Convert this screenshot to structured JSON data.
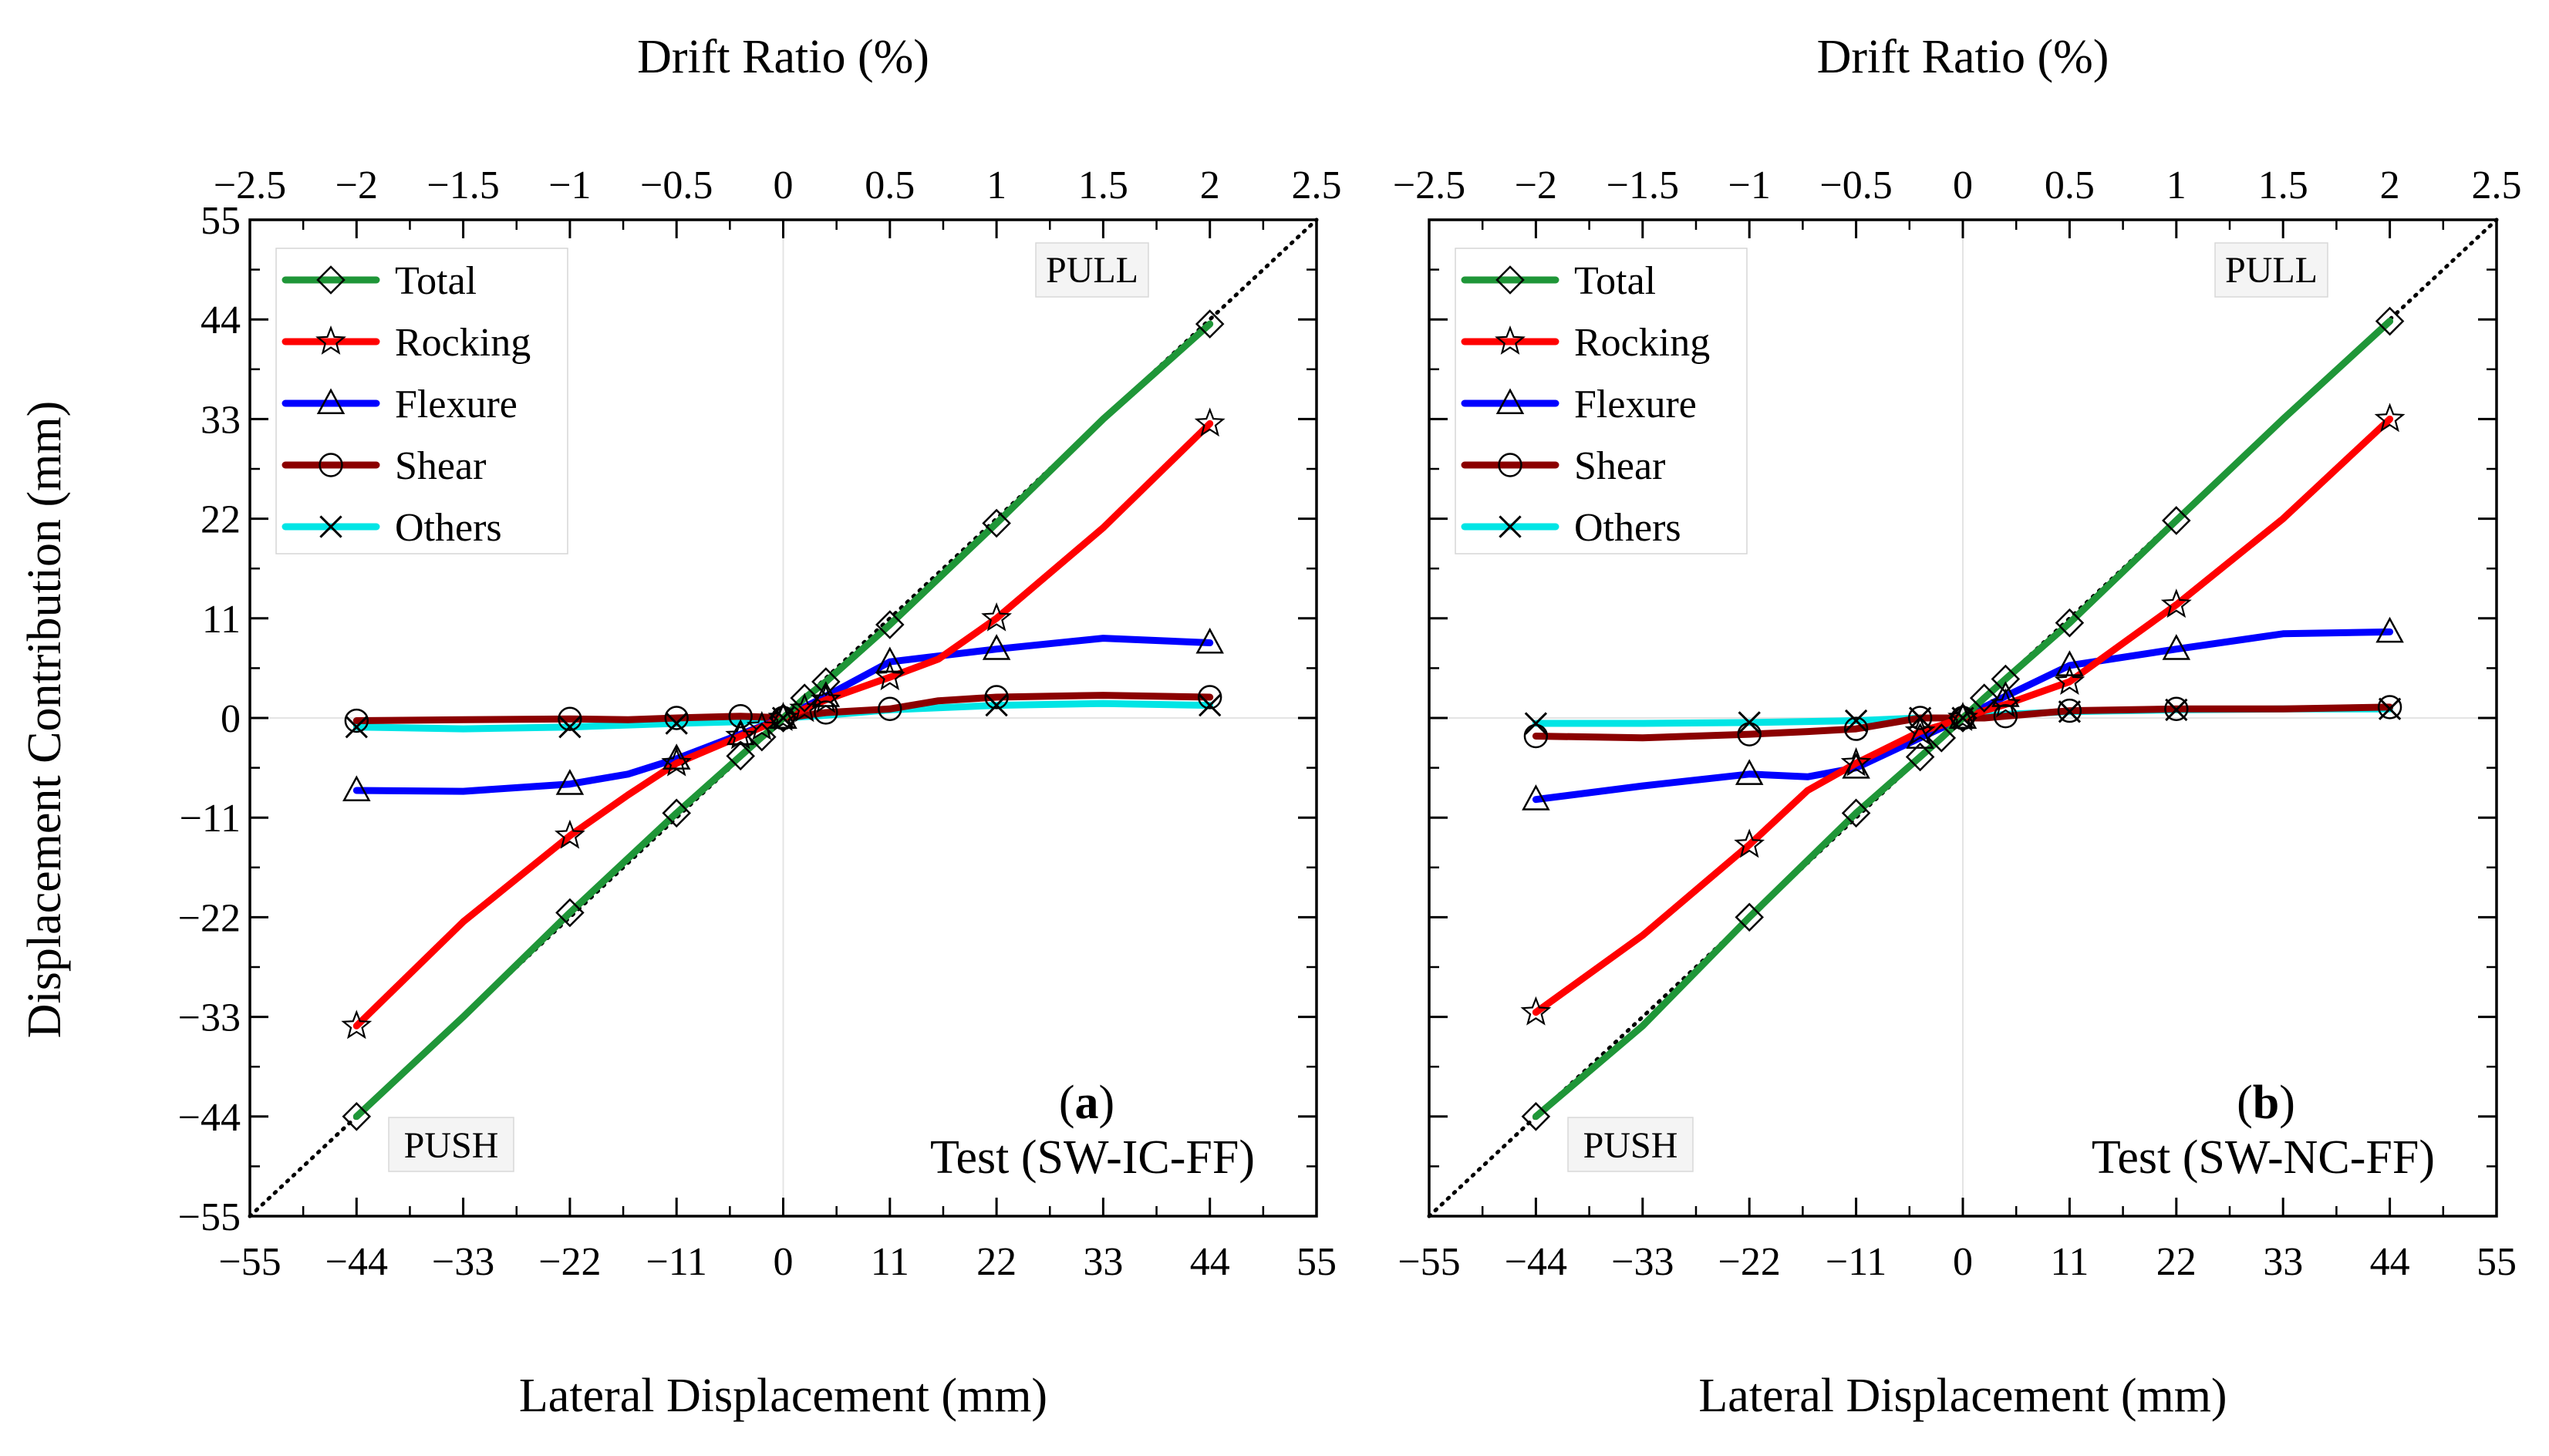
{
  "chart_data": [
    {
      "type": "line",
      "panel_label": "(a)",
      "panel_letter": "a",
      "test_name": "Test (SW-IC-FF)",
      "pull_label": "PULL",
      "push_label": "PUSH",
      "xlabel": "Lateral Displacement (mm)",
      "x2label": "Drift Ratio (%)",
      "ylabel": "Displacement Contribution (mm)",
      "xlim": [
        -55,
        55
      ],
      "ylim": [
        -55,
        55
      ],
      "x2lim": [
        -2.5,
        2.5
      ],
      "xticks": [
        -55,
        -44,
        -33,
        -22,
        -11,
        0,
        11,
        22,
        33,
        44,
        55
      ],
      "yticks": [
        -55,
        -44,
        -33,
        -22,
        -11,
        0,
        11,
        22,
        33,
        44,
        55
      ],
      "x2ticks": [
        -2.5,
        -2,
        -1.5,
        -1,
        -0.5,
        0,
        0.5,
        1,
        1.5,
        2,
        2.5
      ],
      "xtick_labels": [
        "−55",
        "−44",
        "−33",
        "−22",
        "−11",
        "0",
        "11",
        "22",
        "33",
        "44",
        "55"
      ],
      "ytick_labels": [
        "−55",
        "−44",
        "−33",
        "−22",
        "−11",
        "0",
        "11",
        "22",
        "33",
        "44",
        "55"
      ],
      "x2tick_labels": [
        "−2.5",
        "−2",
        "−1.5",
        "−1",
        "−0.5",
        "0",
        "0.5",
        "1",
        "1.5",
        "2",
        "2.5"
      ],
      "reference_line": "dotted 1:1 line",
      "series": [
        {
          "name": "Total",
          "color": "#1f9638",
          "marker": "diamond",
          "x": [
            -44,
            -33,
            -22,
            -11,
            -4.4,
            -2.2,
            -1.1,
            0,
            1.1,
            2.2,
            4.4,
            11,
            22,
            33,
            44
          ],
          "y": [
            -44,
            -33,
            -21.5,
            -10.5,
            -4.2,
            -2.1,
            -1.1,
            0,
            1.1,
            2.2,
            4.0,
            10.3,
            21.5,
            33,
            43.5
          ],
          "mx": [
            -44,
            -22,
            -11,
            -4.4,
            -2.2,
            0,
            2.2,
            4.4,
            11,
            22,
            44
          ]
        },
        {
          "name": "Rocking",
          "color": "#ff0000",
          "marker": "star",
          "x": [
            -44,
            -33,
            -22,
            -16,
            -11,
            -4.4,
            -2.2,
            0,
            2.2,
            4.4,
            11,
            16,
            22,
            33,
            44
          ],
          "y": [
            -34,
            -22.5,
            -13,
            -8.5,
            -5,
            -2,
            -1,
            0,
            1,
            2,
            4.5,
            6.5,
            11,
            21,
            32.5
          ],
          "mx": [
            -44,
            -22,
            -11,
            -4.4,
            -2.2,
            0,
            2.2,
            4.4,
            11,
            22,
            44
          ]
        },
        {
          "name": "Flexure",
          "color": "#0000ff",
          "marker": "triangle",
          "x": [
            -44,
            -33,
            -22,
            -16,
            -11,
            -4.4,
            -2.2,
            0,
            2.2,
            4.4,
            11,
            22,
            33,
            44
          ],
          "y": [
            -8,
            -8.1,
            -7.3,
            -6.2,
            -4.5,
            -1.8,
            -0.9,
            0,
            1.2,
            2.4,
            6.2,
            7.6,
            8.8,
            8.3
          ],
          "mx": [
            -44,
            -22,
            -11,
            -4.4,
            0,
            4.4,
            11,
            22,
            44
          ]
        },
        {
          "name": "Shear",
          "color": "#8b0000",
          "marker": "circle",
          "x": [
            -44,
            -33,
            -22,
            -16,
            -11,
            -4.4,
            -2.2,
            0,
            2.2,
            4.4,
            11,
            16,
            22,
            33,
            44
          ],
          "y": [
            -0.3,
            -0.2,
            -0.1,
            -0.2,
            0,
            0.2,
            0.1,
            0,
            0.3,
            0.6,
            1.0,
            1.9,
            2.3,
            2.5,
            2.3
          ],
          "mx": [
            -44,
            -22,
            -11,
            -4.4,
            0,
            4.4,
            11,
            22,
            44
          ]
        },
        {
          "name": "Others",
          "color": "#00e5e5",
          "marker": "x",
          "x": [
            -44,
            -33,
            -22,
            -11,
            -4.4,
            0,
            4.4,
            11,
            22,
            33,
            44
          ],
          "y": [
            -1.0,
            -1.2,
            -1.0,
            -0.6,
            -0.4,
            0,
            0.3,
            0.9,
            1.4,
            1.6,
            1.4
          ],
          "mx": [
            -44,
            -22,
            -11,
            0,
            22,
            44
          ]
        }
      ]
    },
    {
      "type": "line",
      "panel_label": "(b)",
      "panel_letter": "b",
      "test_name": "Test (SW-NC-FF)",
      "pull_label": "PULL",
      "push_label": "PUSH",
      "xlabel": "Lateral Displacement (mm)",
      "x2label": "Drift Ratio (%)",
      "ylabel": "",
      "xlim": [
        -55,
        55
      ],
      "ylim": [
        -55,
        55
      ],
      "x2lim": [
        -2.5,
        2.5
      ],
      "xticks": [
        -55,
        -44,
        -33,
        -22,
        -11,
        0,
        11,
        22,
        33,
        44,
        55
      ],
      "yticks": [
        -55,
        -44,
        -33,
        -22,
        -11,
        0,
        11,
        22,
        33,
        44,
        55
      ],
      "x2ticks": [
        -2.5,
        -2,
        -1.5,
        -1,
        -0.5,
        0,
        0.5,
        1,
        1.5,
        2,
        2.5
      ],
      "xtick_labels": [
        "−55",
        "−44",
        "−33",
        "−22",
        "−11",
        "0",
        "11",
        "22",
        "33",
        "44",
        "55"
      ],
      "ytick_labels": [],
      "x2tick_labels": [
        "−2.5",
        "−2",
        "−1.5",
        "−1",
        "−0.5",
        "0",
        "0.5",
        "1",
        "1.5",
        "2",
        "2.5"
      ],
      "reference_line": "dotted 1:1 line",
      "series": [
        {
          "name": "Total",
          "color": "#1f9638",
          "marker": "diamond",
          "x": [
            -44,
            -33,
            -22,
            -11,
            -4.4,
            -2.2,
            0,
            2.2,
            4.4,
            11,
            22,
            33,
            44
          ],
          "y": [
            -44,
            -34,
            -22,
            -10.5,
            -4.3,
            -2.2,
            0,
            2.2,
            4.3,
            10.5,
            21.8,
            33,
            43.8
          ],
          "mx": [
            -44,
            -22,
            -11,
            -4.4,
            -2.2,
            0,
            2.2,
            4.4,
            11,
            22,
            44
          ]
        },
        {
          "name": "Rocking",
          "color": "#ff0000",
          "marker": "star",
          "x": [
            -44,
            -33,
            -22,
            -16,
            -11,
            -4.4,
            -2.2,
            0,
            2.2,
            4.4,
            11,
            22,
            33,
            44
          ],
          "y": [
            -32.5,
            -24,
            -14,
            -8,
            -5,
            -1.5,
            -0.8,
            0,
            0.8,
            1.5,
            4,
            12.5,
            22,
            33
          ],
          "mx": [
            -44,
            -22,
            -11,
            -4.4,
            0,
            4.4,
            11,
            22,
            44
          ]
        },
        {
          "name": "Flexure",
          "color": "#0000ff",
          "marker": "triangle",
          "x": [
            -44,
            -33,
            -22,
            -16,
            -11,
            -4.4,
            -2.2,
            0,
            2.2,
            4.4,
            11,
            22,
            33,
            44
          ],
          "y": [
            -9,
            -7.5,
            -6.2,
            -6.5,
            -5.5,
            -2.2,
            -1.1,
            0,
            1.2,
            2.4,
            5.8,
            7.6,
            9.3,
            9.5
          ],
          "mx": [
            -44,
            -22,
            -11,
            -4.4,
            0,
            4.4,
            11,
            22,
            44
          ]
        },
        {
          "name": "Shear",
          "color": "#8b0000",
          "marker": "circle",
          "x": [
            -44,
            -33,
            -22,
            -16,
            -11,
            -4.4,
            -2.2,
            0,
            2.2,
            4.4,
            11,
            22,
            33,
            44
          ],
          "y": [
            -2.0,
            -2.2,
            -1.8,
            -1.5,
            -1.2,
            0,
            0,
            0,
            0,
            0.2,
            0.8,
            1.0,
            1.0,
            1.2
          ],
          "mx": [
            -44,
            -22,
            -11,
            -4.4,
            0,
            4.4,
            11,
            22,
            44
          ]
        },
        {
          "name": "Others",
          "color": "#00e5e5",
          "marker": "x",
          "x": [
            -44,
            -33,
            -22,
            -11,
            -4.4,
            0,
            4.4,
            11,
            22,
            33,
            44
          ],
          "y": [
            -0.6,
            -0.6,
            -0.5,
            -0.3,
            0,
            0,
            0.4,
            0.7,
            0.9,
            1.0,
            1.0
          ],
          "mx": [
            -44,
            -22,
            -11,
            -4.4,
            0,
            11,
            22,
            44
          ]
        }
      ]
    }
  ]
}
